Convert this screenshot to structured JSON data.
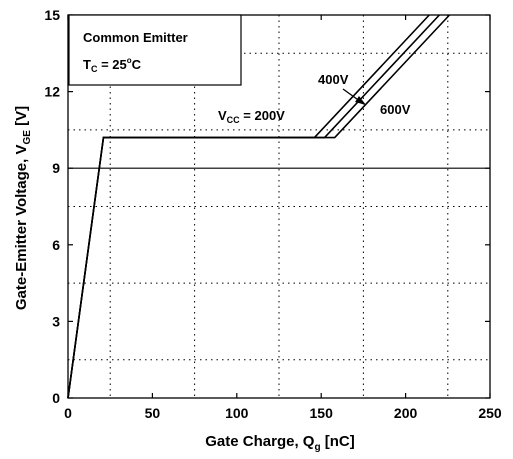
{
  "chart_data": {
    "type": "line",
    "xlabel": {
      "main": "Gate Charge, Q",
      "sub": "g",
      "unit": " [nC]"
    },
    "ylabel": {
      "main": "Gate-Emitter Voltage, V",
      "sub": "GE",
      "unit": " [V]"
    },
    "xlim": [
      0,
      250
    ],
    "ylim": [
      0,
      15
    ],
    "x_ticks": [
      0,
      50,
      100,
      150,
      200,
      250
    ],
    "y_ticks": [
      0,
      3,
      6,
      9,
      12,
      15
    ],
    "grid": "dotted",
    "legend_box": {
      "line1": "Common Emitter",
      "line2_main": "T",
      "line2_sub": "C",
      "line2_rest": " = 25",
      "line2_deg": "o",
      "line2_unit": "C"
    },
    "reference_line": {
      "y": 9
    },
    "series": [
      {
        "name": "V_CC = 200V",
        "x": [
          0,
          21,
          146,
          214
        ],
        "y": [
          0,
          10.2,
          10.2,
          15
        ]
      },
      {
        "name": "400V",
        "x": [
          0,
          21,
          152,
          220
        ],
        "y": [
          0,
          10.2,
          10.2,
          15
        ]
      },
      {
        "name": "600V",
        "x": [
          0,
          21,
          158,
          226
        ],
        "y": [
          0,
          10.2,
          10.2,
          15
        ]
      }
    ],
    "annotations": {
      "vcc": {
        "main": "V",
        "sub": "CC",
        "rest": " = 200V"
      },
      "v400": "400V",
      "v600": "600V"
    }
  }
}
